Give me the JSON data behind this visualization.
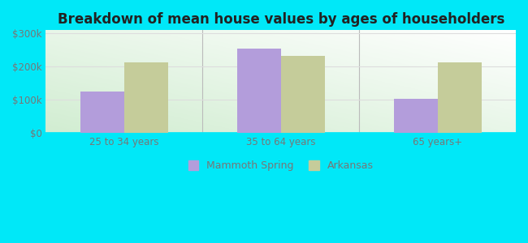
{
  "title": "Breakdown of mean house values by ages of householders",
  "categories": [
    "25 to 34 years",
    "35 to 64 years",
    "65 years+"
  ],
  "mammoth_spring": [
    125000,
    255000,
    102000
  ],
  "arkansas": [
    212000,
    232000,
    212000
  ],
  "mammoth_color": "#b39ddb",
  "arkansas_color": "#c5cc9a",
  "ylim": [
    0,
    310000
  ],
  "yticks": [
    0,
    100000,
    200000,
    300000
  ],
  "ytick_labels": [
    "$0",
    "$100k",
    "$200k",
    "$300k"
  ],
  "bar_width": 0.28,
  "background_outer": "#00e8f8",
  "title_fontsize": 12,
  "legend_label_1": "Mammoth Spring",
  "legend_label_2": "Arkansas",
  "tick_color": "#777777",
  "grid_color": "#dddddd",
  "title_color": "#222222"
}
